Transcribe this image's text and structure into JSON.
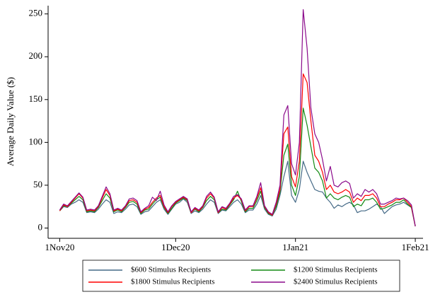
{
  "chart_data": {
    "type": "line",
    "y_label": "Average Daily Value ($)",
    "x": [
      "2020-11-01",
      "2020-11-02",
      "2020-11-03",
      "2020-11-04",
      "2020-11-05",
      "2020-11-06",
      "2020-11-07",
      "2020-11-08",
      "2020-11-09",
      "2020-11-10",
      "2020-11-11",
      "2020-11-12",
      "2020-11-13",
      "2020-11-14",
      "2020-11-15",
      "2020-11-16",
      "2020-11-17",
      "2020-11-18",
      "2020-11-19",
      "2020-11-20",
      "2020-11-21",
      "2020-11-22",
      "2020-11-23",
      "2020-11-24",
      "2020-11-25",
      "2020-11-26",
      "2020-11-27",
      "2020-11-28",
      "2020-11-29",
      "2020-11-30",
      "2020-12-01",
      "2020-12-02",
      "2020-12-03",
      "2020-12-04",
      "2020-12-05",
      "2020-12-06",
      "2020-12-07",
      "2020-12-08",
      "2020-12-09",
      "2020-12-10",
      "2020-12-11",
      "2020-12-12",
      "2020-12-13",
      "2020-12-14",
      "2020-12-15",
      "2020-12-16",
      "2020-12-17",
      "2020-12-18",
      "2020-12-19",
      "2020-12-20",
      "2020-12-21",
      "2020-12-22",
      "2020-12-23",
      "2020-12-24",
      "2020-12-25",
      "2020-12-26",
      "2020-12-27",
      "2020-12-28",
      "2020-12-29",
      "2020-12-30",
      "2020-12-31",
      "2021-01-01",
      "2021-01-02",
      "2021-01-03",
      "2021-01-04",
      "2021-01-05",
      "2021-01-06",
      "2021-01-07",
      "2021-01-08",
      "2021-01-09",
      "2021-01-10",
      "2021-01-11",
      "2021-01-12",
      "2021-01-13",
      "2021-01-14",
      "2021-01-15",
      "2021-01-16",
      "2021-01-17",
      "2021-01-18",
      "2021-01-19",
      "2021-01-20",
      "2021-01-21",
      "2021-01-22",
      "2021-01-23",
      "2021-01-24",
      "2021-01-25",
      "2021-01-26",
      "2021-01-27",
      "2021-01-28",
      "2021-01-29",
      "2021-01-30",
      "2021-01-31",
      "2021-02-01"
    ],
    "series": [
      {
        "name": "$600 Stimulus Recipients",
        "color": "#456a87",
        "values": [
          20,
          25,
          24,
          28,
          30,
          33,
          30,
          18,
          19,
          18,
          22,
          28,
          33,
          30,
          17,
          19,
          18,
          22,
          27,
          28,
          25,
          16,
          19,
          20,
          25,
          30,
          33,
          22,
          16,
          22,
          28,
          30,
          34,
          30,
          17,
          20,
          18,
          22,
          28,
          33,
          30,
          17,
          21,
          20,
          25,
          30,
          33,
          28,
          18,
          21,
          21,
          28,
          38,
          22,
          16,
          14,
          22,
          38,
          60,
          78,
          38,
          30,
          45,
          78,
          65,
          55,
          45,
          43,
          42,
          35,
          30,
          23,
          27,
          25,
          28,
          30,
          27,
          18,
          20,
          20,
          22,
          25,
          28,
          25,
          17,
          21,
          25,
          27,
          28,
          30,
          27,
          24,
          2
        ]
      },
      {
        "name": "$1200 Stimulus Recipients",
        "color": "#138a13",
        "values": [
          20,
          26,
          25,
          29,
          33,
          37,
          33,
          19,
          20,
          19,
          24,
          32,
          40,
          35,
          19,
          21,
          19,
          24,
          30,
          31,
          28,
          17,
          21,
          22,
          28,
          33,
          36,
          24,
          17,
          23,
          29,
          32,
          35,
          32,
          18,
          22,
          19,
          24,
          32,
          37,
          33,
          18,
          22,
          21,
          27,
          33,
          43,
          31,
          19,
          23,
          23,
          32,
          43,
          24,
          17,
          15,
          25,
          42,
          85,
          98,
          50,
          38,
          60,
          140,
          120,
          95,
          70,
          65,
          55,
          35,
          40,
          35,
          33,
          36,
          38,
          36,
          25,
          28,
          26,
          33,
          33,
          35,
          30,
          22,
          23,
          25,
          27,
          30,
          30,
          33,
          28,
          24,
          2
        ]
      },
      {
        "name": "$1800 Stimulus Recipients",
        "color": "#ff0000",
        "values": [
          20,
          27,
          25,
          30,
          35,
          40,
          35,
          20,
          21,
          20,
          25,
          35,
          45,
          38,
          20,
          22,
          20,
          25,
          32,
          33,
          30,
          18,
          22,
          24,
          30,
          35,
          38,
          25,
          18,
          25,
          30,
          33,
          36,
          33,
          18,
          23,
          20,
          25,
          35,
          40,
          35,
          18,
          24,
          22,
          28,
          35,
          38,
          33,
          20,
          25,
          25,
          35,
          47,
          25,
          18,
          15,
          28,
          45,
          110,
          118,
          60,
          48,
          78,
          180,
          170,
          125,
          85,
          78,
          65,
          45,
          50,
          42,
          40,
          42,
          45,
          42,
          30,
          35,
          32,
          38,
          38,
          40,
          35,
          25,
          25,
          28,
          30,
          33,
          33,
          35,
          30,
          25,
          2
        ]
      },
      {
        "name": "$2400 Stimulus Recipients",
        "color": "#8b0a8b",
        "values": [
          21,
          28,
          26,
          31,
          36,
          41,
          36,
          21,
          22,
          21,
          26,
          37,
          48,
          40,
          21,
          23,
          21,
          26,
          34,
          35,
          32,
          19,
          23,
          26,
          36,
          32,
          43,
          27,
          19,
          26,
          31,
          34,
          37,
          34,
          19,
          24,
          21,
          26,
          37,
          42,
          36,
          19,
          25,
          23,
          29,
          37,
          39,
          34,
          21,
          26,
          26,
          37,
          53,
          26,
          19,
          16,
          30,
          50,
          132,
          143,
          75,
          62,
          100,
          255,
          210,
          140,
          110,
          100,
          80,
          55,
          72,
          50,
          48,
          53,
          55,
          52,
          35,
          40,
          37,
          45,
          42,
          45,
          40,
          28,
          28,
          30,
          32,
          35,
          34,
          35,
          32,
          27,
          2
        ]
      }
    ],
    "xlim": [
      "2020-10-29",
      "2021-02-03"
    ],
    "xticks": [
      {
        "value": "2020-11-01",
        "label": "1Nov20"
      },
      {
        "value": "2020-12-01",
        "label": "1Dec20"
      },
      {
        "value": "2021-01-01",
        "label": "1Jan21"
      },
      {
        "value": "2021-02-01",
        "label": "1Feb21"
      }
    ],
    "ylim": [
      -12,
      258
    ],
    "yticks": [
      0,
      50,
      100,
      150,
      200,
      250
    ],
    "legend": "bottom"
  }
}
